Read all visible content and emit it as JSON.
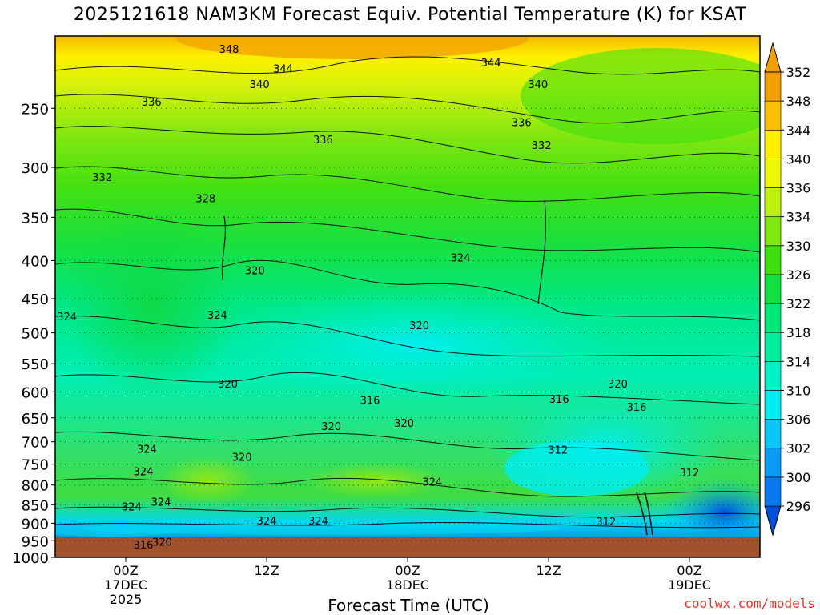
{
  "title": "2025121618 NAM3KM Forecast Equiv. Potential Temperature (K) for KSAT",
  "credit": "coolwx.com/models",
  "chart_data": {
    "type": "heatmap",
    "xlabel": "Forecast Time (UTC)",
    "ylabel": "",
    "y_axis": "pressure (hPa), log scale, inverted",
    "ylim": [
      1000,
      200
    ],
    "y_ticks": [
      250,
      300,
      350,
      400,
      450,
      500,
      550,
      600,
      650,
      700,
      750,
      800,
      850,
      900,
      950,
      1000
    ],
    "x_ticks": [
      {
        "hour": 6,
        "lines": [
          "00Z",
          "17DEC",
          "2025"
        ]
      },
      {
        "hour": 18,
        "lines": [
          "12Z"
        ]
      },
      {
        "hour": 30,
        "lines": [
          "00Z",
          "18DEC"
        ]
      },
      {
        "hour": 42,
        "lines": [
          "12Z"
        ]
      },
      {
        "hour": 54,
        "lines": [
          "00Z",
          "19DEC"
        ]
      }
    ],
    "xlim": [
      0,
      60
    ],
    "grid": "dotted at pressure ticks",
    "colorbar": {
      "levels": [
        296,
        300,
        302,
        306,
        310,
        314,
        318,
        322,
        326,
        330,
        334,
        336,
        340,
        344,
        348,
        352
      ],
      "colors": [
        "#0050dc",
        "#0a78f0",
        "#0a9cf5",
        "#0ac8f5",
        "#00eef0",
        "#00f0c8",
        "#00eea0",
        "#00e878",
        "#10e040",
        "#40e010",
        "#80e810",
        "#c0f010",
        "#ecf808",
        "#fff000",
        "#f8c000",
        "#f0a000"
      ]
    },
    "contour_labels": [
      {
        "hour": 14.8,
        "p": 208,
        "value": "348"
      },
      {
        "hour": 19.4,
        "p": 221,
        "value": "344"
      },
      {
        "hour": 37.1,
        "p": 217,
        "value": "344"
      },
      {
        "hour": 17.4,
        "p": 232,
        "value": "340"
      },
      {
        "hour": 41.1,
        "p": 232,
        "value": "340"
      },
      {
        "hour": 8.2,
        "p": 245,
        "value": "336"
      },
      {
        "hour": 22.8,
        "p": 275,
        "value": "336"
      },
      {
        "hour": 39.7,
        "p": 261,
        "value": "336"
      },
      {
        "hour": 41.4,
        "p": 280,
        "value": "332"
      },
      {
        "hour": 4.0,
        "p": 309,
        "value": "332"
      },
      {
        "hour": 12.8,
        "p": 330,
        "value": "328"
      },
      {
        "hour": 17.0,
        "p": 412,
        "value": "320"
      },
      {
        "hour": 34.5,
        "p": 396,
        "value": "324"
      },
      {
        "hour": 1.0,
        "p": 475,
        "value": "324"
      },
      {
        "hour": 13.8,
        "p": 473,
        "value": "324"
      },
      {
        "hour": 31.0,
        "p": 488,
        "value": "320"
      },
      {
        "hour": 14.7,
        "p": 585,
        "value": "320"
      },
      {
        "hour": 47.9,
        "p": 585,
        "value": "320"
      },
      {
        "hour": 26.8,
        "p": 615,
        "value": "316"
      },
      {
        "hour": 42.9,
        "p": 613,
        "value": "316"
      },
      {
        "hour": 49.5,
        "p": 628,
        "value": "316"
      },
      {
        "hour": 23.5,
        "p": 667,
        "value": "320"
      },
      {
        "hour": 29.7,
        "p": 660,
        "value": "320"
      },
      {
        "hour": 7.8,
        "p": 715,
        "value": "324"
      },
      {
        "hour": 15.9,
        "p": 733,
        "value": "320"
      },
      {
        "hour": 42.8,
        "p": 717,
        "value": "312"
      },
      {
        "hour": 7.5,
        "p": 767,
        "value": "324"
      },
      {
        "hour": 32.1,
        "p": 792,
        "value": "324"
      },
      {
        "hour": 54.0,
        "p": 769,
        "value": "312"
      },
      {
        "hour": 9.0,
        "p": 842,
        "value": "324"
      },
      {
        "hour": 6.5,
        "p": 855,
        "value": "324"
      },
      {
        "hour": 18.0,
        "p": 893,
        "value": "324"
      },
      {
        "hour": 22.4,
        "p": 893,
        "value": "324"
      },
      {
        "hour": 46.9,
        "p": 895,
        "value": "312"
      },
      {
        "hour": 9.1,
        "p": 953,
        "value": "320"
      },
      {
        "hour": 7.5,
        "p": 961,
        "value": "316"
      }
    ]
  }
}
